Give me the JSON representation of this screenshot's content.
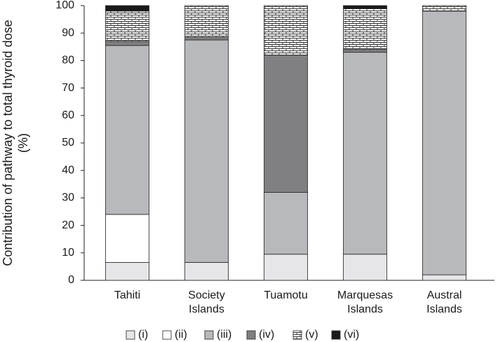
{
  "chart_data": {
    "type": "stacked_bar",
    "y_label": "Contribution of pathway to total thyroid dose (%)",
    "categories": [
      "Tahiti",
      "Society Islands",
      "Tuamotu",
      "Marquesas Islands",
      "Austral Islands"
    ],
    "series": [
      {
        "name": "(i)",
        "color": "#e6e6e8",
        "values": [
          6.5,
          6.5,
          9.5,
          9.5,
          2
        ]
      },
      {
        "name": "(ii)",
        "color": "#ffffff",
        "values": [
          17.5,
          0,
          0,
          0,
          0
        ]
      },
      {
        "name": "(iii)",
        "color": "#b8b9bc",
        "values": [
          61.5,
          81,
          22.5,
          73.5,
          96
        ]
      },
      {
        "name": "(iv)",
        "color": "#808083",
        "values": [
          1.5,
          1,
          50,
          1,
          0
        ]
      },
      {
        "name": "(v)",
        "color": "#ffffff",
        "hatch": "brick",
        "values": [
          11,
          11.5,
          18,
          15,
          2
        ]
      },
      {
        "name": "(vi)",
        "color": "#1a1a1a",
        "values": [
          2,
          0,
          0,
          1,
          0
        ]
      }
    ],
    "ylim": [
      0,
      100
    ],
    "yticks": [
      0,
      10,
      20,
      30,
      40,
      50,
      60,
      70,
      80,
      90,
      100
    ]
  }
}
